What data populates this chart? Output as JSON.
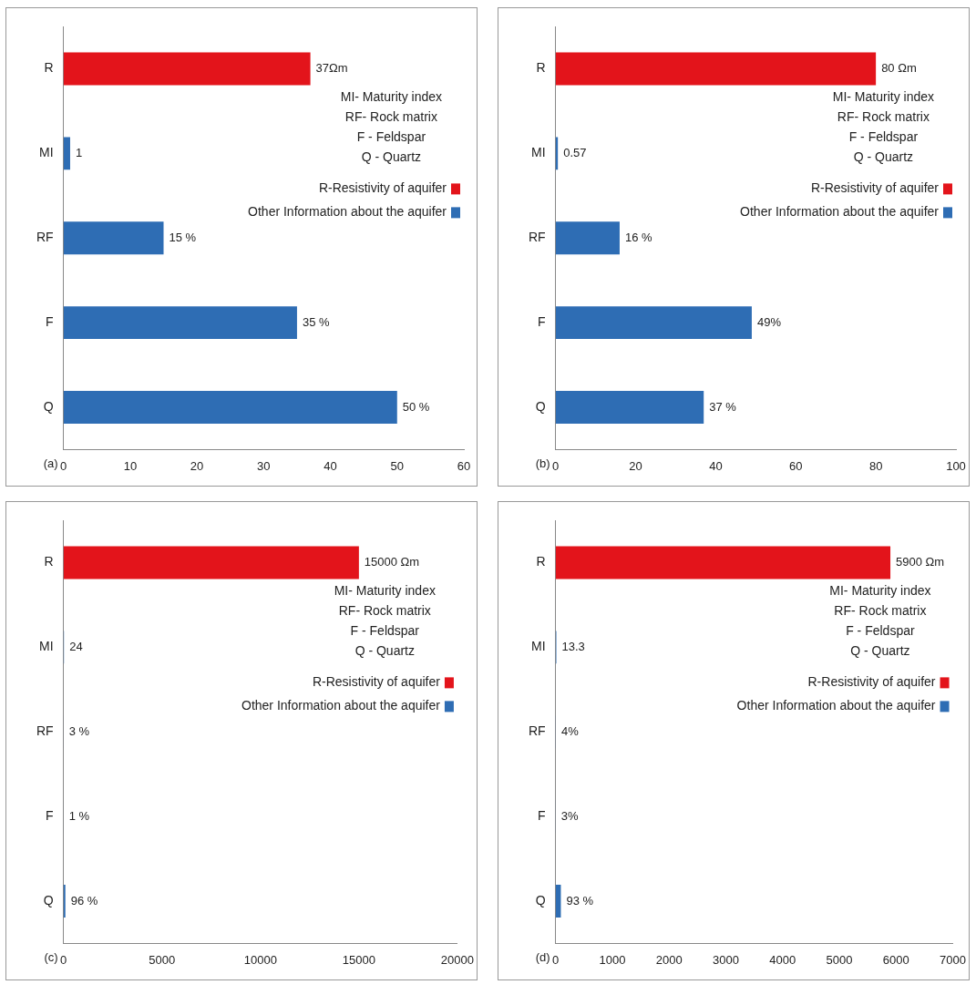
{
  "chart_data": [
    {
      "type": "bar",
      "orientation": "horizontal",
      "title": "(a)",
      "categories": [
        "R",
        "MI",
        "RF",
        "F",
        "Q"
      ],
      "series": [
        {
          "name": "R-Resistivity of aquifer",
          "color": "#e3141b",
          "values": [
            37,
            null,
            null,
            null,
            null
          ],
          "value_labels": [
            "37Ωm",
            null,
            null,
            null,
            null
          ]
        },
        {
          "name": "Other Information about the aquifer",
          "color": "#2e6db4",
          "values": [
            null,
            1,
            15,
            35,
            50
          ],
          "value_labels": [
            null,
            "1",
            "15 %",
            "35 %",
            "50 %"
          ]
        }
      ],
      "xlim": [
        0,
        60
      ],
      "xticks": [
        0,
        10,
        20,
        30,
        40,
        50,
        60
      ],
      "legend": "right",
      "annotations": [
        "MI- Maturity index",
        "RF- Rock matrix",
        "F - Feldspar",
        "Q - Quartz"
      ]
    },
    {
      "type": "bar",
      "orientation": "horizontal",
      "title": "(b)",
      "categories": [
        "R",
        "MI",
        "RF",
        "F",
        "Q"
      ],
      "series": [
        {
          "name": "R-Resistivity of aquifer",
          "color": "#e3141b",
          "values": [
            80,
            null,
            null,
            null,
            null
          ],
          "value_labels": [
            "80 Ωm",
            null,
            null,
            null,
            null
          ]
        },
        {
          "name": "Other Information about the aquifer",
          "color": "#2e6db4",
          "values": [
            null,
            0.57,
            16,
            49,
            37
          ],
          "value_labels": [
            null,
            "0.57",
            "16 %",
            "49%",
            "37 %"
          ]
        }
      ],
      "xlim": [
        0,
        100
      ],
      "xticks": [
        0,
        20,
        40,
        60,
        80,
        100
      ],
      "legend": "right",
      "annotations": [
        "MI- Maturity index",
        "RF- Rock matrix",
        "F - Feldspar",
        "Q - Quartz"
      ]
    },
    {
      "type": "bar",
      "orientation": "horizontal",
      "title": "(c)",
      "categories": [
        "R",
        "MI",
        "RF",
        "F",
        "Q"
      ],
      "series": [
        {
          "name": "R-Resistivity of aquifer",
          "color": "#e3141b",
          "values": [
            15000,
            null,
            null,
            null,
            null
          ],
          "value_labels": [
            "15000 Ωm",
            null,
            null,
            null,
            null
          ]
        },
        {
          "name": "Other Information about the aquifer",
          "color": "#2e6db4",
          "values": [
            null,
            24,
            3,
            1,
            96
          ],
          "value_labels": [
            null,
            "24",
            "3 %",
            "1 %",
            "96 %"
          ]
        }
      ],
      "xlim": [
        0,
        20000
      ],
      "xticks": [
        0,
        5000,
        10000,
        15000,
        20000
      ],
      "legend": "right",
      "annotations": [
        "MI- Maturity index",
        "RF- Rock matrix",
        "F - Feldspar",
        "Q - Quartz"
      ]
    },
    {
      "type": "bar",
      "orientation": "horizontal",
      "title": "(d)",
      "categories": [
        "R",
        "MI",
        "RF",
        "F",
        "Q"
      ],
      "series": [
        {
          "name": "R-Resistivity of aquifer",
          "color": "#e3141b",
          "values": [
            5900,
            null,
            null,
            null,
            null
          ],
          "value_labels": [
            "5900 Ωm",
            null,
            null,
            null,
            null
          ]
        },
        {
          "name": "Other Information about the aquifer",
          "color": "#2e6db4",
          "values": [
            null,
            13.3,
            4,
            3,
            93
          ],
          "value_labels": [
            null,
            "13.3",
            "4%",
            "3%",
            "93 %"
          ]
        }
      ],
      "xlim": [
        0,
        7000
      ],
      "xticks": [
        0,
        1000,
        2000,
        3000,
        4000,
        5000,
        6000,
        7000
      ],
      "legend": "right",
      "annotations": [
        "MI- Maturity index",
        "RF- Rock matrix",
        "F - Feldspar",
        "Q - Quartz"
      ]
    }
  ]
}
